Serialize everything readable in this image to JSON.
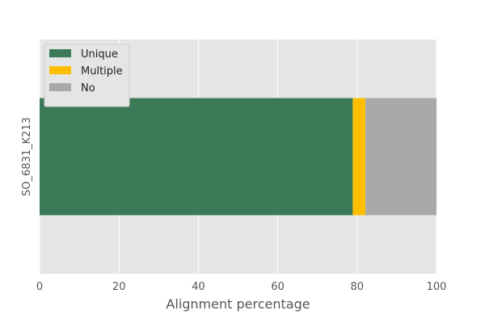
{
  "chart_data": {
    "type": "bar",
    "orientation": "horizontal",
    "stacked": true,
    "categories": [
      "SO_6831_K213"
    ],
    "series": [
      {
        "name": "Unique",
        "values": [
          78.9
        ],
        "color": "#3a7a57"
      },
      {
        "name": "Multiple",
        "values": [
          3.2
        ],
        "color": "#ffbf00"
      },
      {
        "name": "No",
        "values": [
          17.9
        ],
        "color": "#a8a8a8"
      }
    ],
    "xlabel": "Alignment percentage",
    "ylabel": "",
    "xlim": [
      0,
      100
    ],
    "xticks": [
      0,
      20,
      40,
      60,
      80,
      100
    ],
    "grid": true,
    "legend_position": "top-left",
    "background": "#e5e5e5",
    "gridline_color": "#ffffff"
  }
}
